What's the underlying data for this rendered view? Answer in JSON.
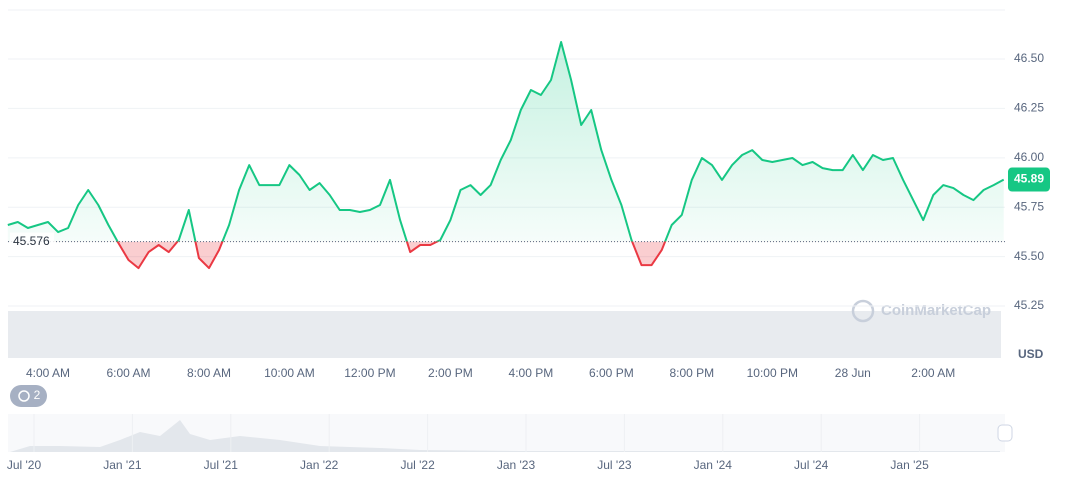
{
  "chart_data": {
    "type": "line",
    "categories": [
      null,
      null,
      null,
      null,
      "4:00 AM",
      null,
      null,
      null,
      null,
      null,
      null,
      null,
      "6:00 AM",
      null,
      null,
      null,
      null,
      null,
      null,
      null,
      "8:00 AM",
      null,
      null,
      null,
      null,
      null,
      null,
      null,
      "10:00 AM",
      null,
      null,
      null,
      null,
      null,
      null,
      null,
      "12:00 PM",
      null,
      null,
      null,
      null,
      null,
      null,
      null,
      "2:00 PM",
      null,
      null,
      null,
      null,
      null,
      null,
      null,
      "4:00 PM",
      null,
      null,
      null,
      null,
      null,
      null,
      null,
      "6:00 PM",
      null,
      null,
      null,
      null,
      null,
      null,
      null,
      "8:00 PM",
      null,
      null,
      null,
      null,
      null,
      null,
      null,
      "10:00 PM",
      null,
      null,
      null,
      null,
      null,
      null,
      null,
      "28 Jun",
      null,
      null,
      null,
      null,
      null,
      null,
      null,
      "2:00 AM",
      null,
      null,
      null,
      null,
      null,
      null,
      null
    ],
    "values": [
      45.66,
      45.675,
      45.645,
      45.66,
      45.675,
      45.624,
      45.645,
      45.761,
      45.837,
      45.761,
      45.66,
      45.569,
      45.483,
      45.442,
      45.523,
      45.559,
      45.523,
      45.584,
      45.736,
      45.493,
      45.442,
      45.533,
      45.66,
      45.837,
      45.963,
      45.862,
      45.862,
      45.862,
      45.963,
      45.913,
      45.837,
      45.872,
      45.812,
      45.736,
      45.736,
      45.726,
      45.736,
      45.761,
      45.888,
      45.685,
      45.523,
      45.559,
      45.559,
      45.584,
      45.685,
      45.837,
      45.862,
      45.812,
      45.862,
      45.989,
      46.09,
      46.242,
      46.343,
      46.318,
      46.394,
      46.586,
      46.394,
      46.166,
      46.242,
      46.039,
      45.888,
      45.761,
      45.584,
      45.457,
      45.457,
      45.533,
      45.66,
      45.711,
      45.888,
      45.999,
      45.963,
      45.888,
      45.963,
      46.014,
      46.039,
      45.989,
      45.979,
      45.989,
      45.999,
      45.963,
      45.979,
      45.948,
      45.938,
      45.938,
      46.014,
      45.938,
      46.014,
      45.989,
      45.999,
      45.888,
      45.786,
      45.685,
      45.812,
      45.862,
      45.847,
      45.812,
      45.786,
      45.837,
      45.862,
      45.89
    ],
    "baseline": 45.576,
    "current_price": 45.89,
    "up_color": "#16c784",
    "down_color": "#ea3943",
    "ylim": [
      44.987,
      46.748
    ],
    "yticks": [
      45.25,
      {
        "value": 45.5,
        "label": "45.50"
      },
      45.75,
      {
        "value": 46,
        "label": "46.00"
      },
      46.25,
      {
        "value": 46.5,
        "label": "46.50"
      }
    ],
    "y_unit": "USD",
    "grid": true,
    "watermark": "CoinMarketCap",
    "history_count": 2,
    "navigator_labels": [
      "Jul '20",
      "Jan '21",
      "Jul '21",
      "Jan '22",
      "Jul '22",
      "Jan '23",
      "Jul '23",
      "Jan '24",
      "Jul '24",
      "Jan '25"
    ]
  }
}
